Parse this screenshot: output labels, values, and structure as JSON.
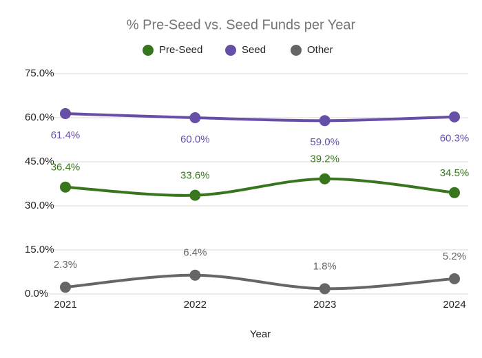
{
  "chart_data": {
    "type": "line",
    "title": "% Pre-Seed vs. Seed Funds per Year",
    "x_label": "Year",
    "categories": [
      "2021",
      "2022",
      "2023",
      "2024"
    ],
    "series": [
      {
        "name": "Pre-Seed",
        "color": "#38761d",
        "values": [
          36.4,
          33.6,
          39.2,
          34.5
        ],
        "value_labels": [
          "36.4%",
          "33.6%",
          "39.2%",
          "34.5%"
        ]
      },
      {
        "name": "Seed",
        "color": "#674ea7",
        "values": [
          61.4,
          60.0,
          59.0,
          60.3
        ],
        "value_labels": [
          "61.4%",
          "60.0%",
          "59.0%",
          "60.3%"
        ]
      },
      {
        "name": "Other",
        "color": "#666666",
        "values": [
          2.3,
          6.4,
          1.8,
          5.2
        ],
        "value_labels": [
          "2.3%",
          "6.4%",
          "1.8%",
          "5.2%"
        ]
      }
    ],
    "ylim": [
      0,
      75
    ],
    "yticks": [
      {
        "value": 0,
        "label": "0.0%"
      },
      {
        "value": 15,
        "label": "15.0%"
      },
      {
        "value": 30,
        "label": "30.0%"
      },
      {
        "value": 45,
        "label": "45.0%"
      },
      {
        "value": 60,
        "label": "60.0%"
      },
      {
        "value": 75,
        "label": "75.0%"
      }
    ],
    "grid": true,
    "legend": "top"
  }
}
